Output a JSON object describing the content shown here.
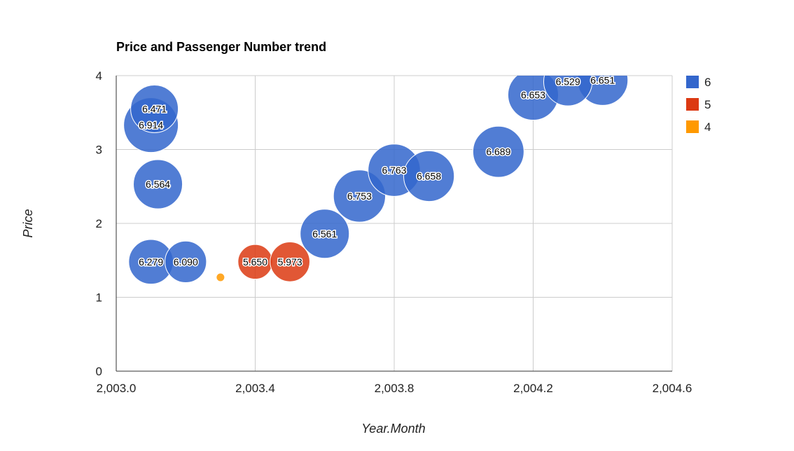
{
  "chart_data": {
    "type": "bubble",
    "title": "Price and Passenger Number trend",
    "xlabel": "Year.Month",
    "ylabel": "Price",
    "xlim": [
      2003.0,
      2004.6
    ],
    "ylim": [
      0,
      4
    ],
    "x_ticks": [
      "2,003.0",
      "2,003.4",
      "2,003.8",
      "2,004.2",
      "2,004.6"
    ],
    "y_ticks": [
      "0",
      "1",
      "2",
      "3",
      "4"
    ],
    "grid": true,
    "legend_position": "right",
    "legend": [
      {
        "name": "6",
        "color": "#3366cc"
      },
      {
        "name": "5",
        "color": "#dc3912"
      },
      {
        "name": "4",
        "color": "#ff9900"
      }
    ],
    "points": [
      {
        "label": "6.914",
        "x": 2003.1,
        "y": 3.33,
        "size": 6.914,
        "group": "6"
      },
      {
        "label": "6.471",
        "x": 2003.11,
        "y": 3.55,
        "size": 6.471,
        "group": "6"
      },
      {
        "label": "6.564",
        "x": 2003.12,
        "y": 2.53,
        "size": 6.564,
        "group": "6"
      },
      {
        "label": "6.279",
        "x": 2003.1,
        "y": 1.48,
        "size": 6.279,
        "group": "6"
      },
      {
        "label": "6.090",
        "x": 2003.2,
        "y": 1.48,
        "size": 6.09,
        "group": "6"
      },
      {
        "label": "",
        "x": 2003.3,
        "y": 1.27,
        "size": 4.0,
        "group": "4"
      },
      {
        "label": "5.650",
        "x": 2003.4,
        "y": 1.48,
        "size": 5.65,
        "group": "5"
      },
      {
        "label": "5.973",
        "x": 2003.5,
        "y": 1.48,
        "size": 5.973,
        "group": "5"
      },
      {
        "label": "6.561",
        "x": 2003.6,
        "y": 1.86,
        "size": 6.561,
        "group": "6"
      },
      {
        "label": "6.753",
        "x": 2003.7,
        "y": 2.37,
        "size": 6.753,
        "group": "6"
      },
      {
        "label": "6.763",
        "x": 2003.8,
        "y": 2.72,
        "size": 6.763,
        "group": "6"
      },
      {
        "label": "6.658",
        "x": 2003.9,
        "y": 2.64,
        "size": 6.658,
        "group": "6"
      },
      {
        "label": "6.689",
        "x": 2004.1,
        "y": 2.97,
        "size": 6.689,
        "group": "6"
      },
      {
        "label": "6.653",
        "x": 2004.2,
        "y": 3.74,
        "size": 6.653,
        "group": "6"
      },
      {
        "label": "6.651",
        "x": 2004.4,
        "y": 3.94,
        "size": 6.651,
        "group": "6"
      },
      {
        "label": "6.529",
        "x": 2004.3,
        "y": 3.92,
        "size": 6.529,
        "group": "6"
      }
    ]
  }
}
